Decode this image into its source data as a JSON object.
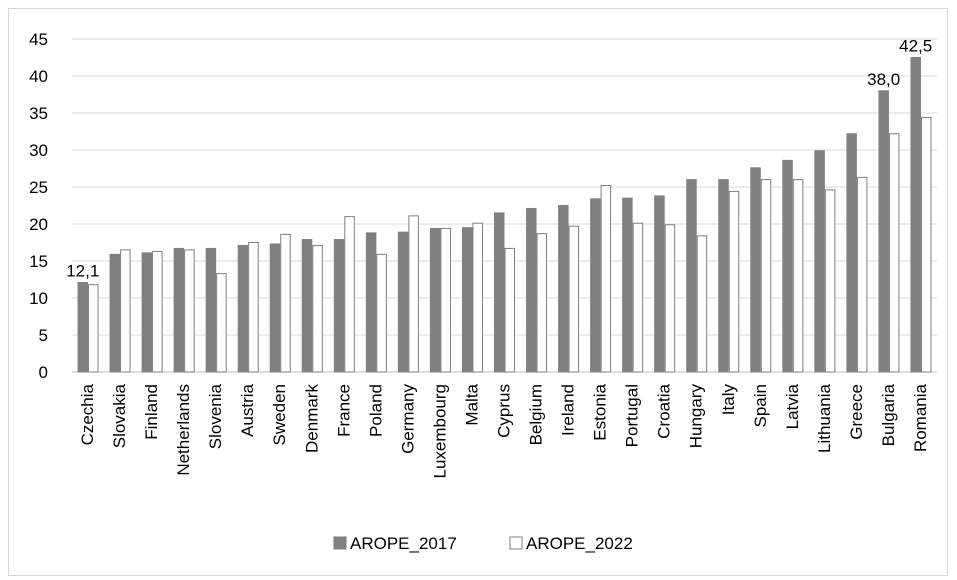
{
  "chart_data": {
    "type": "bar",
    "categories": [
      "Czechia",
      "Slovakia",
      "Finland",
      "Netherlands",
      "Slovenia",
      "Austria",
      "Sweden",
      "Denmark",
      "France",
      "Poland",
      "Germany",
      "Luxembourg",
      "Malta",
      "Cyprus",
      "Belgium",
      "Ireland",
      "Estonia",
      "Portugal",
      "Croatia",
      "Hungary",
      "Italy",
      "Spain",
      "Latvia",
      "Lithuania",
      "Greece",
      "Bulgaria",
      "Romania"
    ],
    "series": [
      {
        "name": "AROPE_2017",
        "color": "#808080",
        "values": [
          12.1,
          15.9,
          16.1,
          16.7,
          16.7,
          17.1,
          17.3,
          17.9,
          17.9,
          18.8,
          18.9,
          19.4,
          19.5,
          21.5,
          22.1,
          22.5,
          23.4,
          23.5,
          23.8,
          26.0,
          26.0,
          27.6,
          28.6,
          29.9,
          32.2,
          38.0,
          42.5
        ]
      },
      {
        "name": "AROPE_2022",
        "color": "#ffffff",
        "values": [
          11.8,
          16.5,
          16.3,
          16.5,
          13.3,
          17.5,
          18.6,
          17.1,
          21.0,
          15.9,
          21.1,
          19.4,
          20.1,
          16.7,
          18.7,
          19.7,
          25.2,
          20.1,
          19.9,
          18.4,
          24.4,
          26.0,
          26.0,
          24.6,
          26.3,
          32.2,
          34.4
        ]
      }
    ],
    "data_labels": [
      {
        "series": 0,
        "index": 0,
        "text": "12,1"
      },
      {
        "series": 0,
        "index": 25,
        "text": "38,0"
      },
      {
        "series": 0,
        "index": 26,
        "text": "42,5"
      }
    ],
    "ylim": [
      0,
      45
    ],
    "yticks": [
      0,
      5,
      10,
      15,
      20,
      25,
      30,
      35,
      40,
      45
    ],
    "grid": true,
    "legend_position": "bottom",
    "title": "",
    "xlabel": "",
    "ylabel": ""
  }
}
